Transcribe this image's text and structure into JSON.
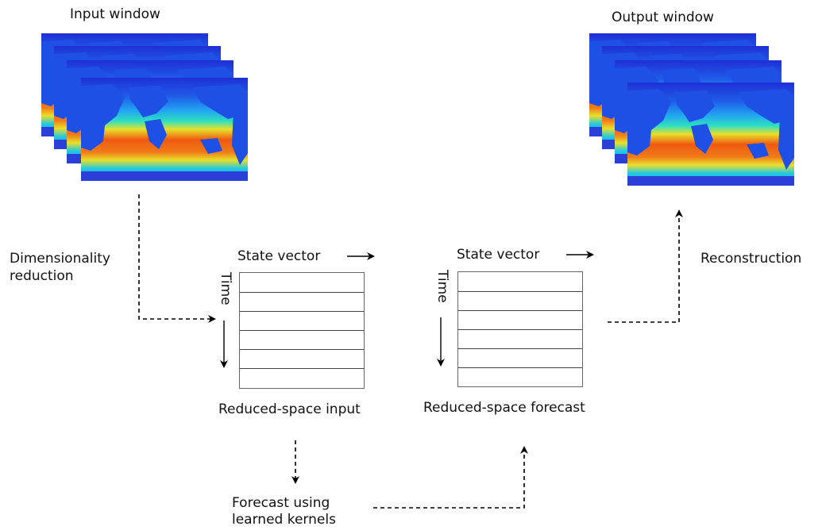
{
  "labels": {
    "input_window": "Input window",
    "output_window": "Output window",
    "dimensionality_line1": "Dimensionality",
    "dimensionality_line2": "reduction",
    "reconstruction": "Reconstruction",
    "state_vector_left": "State vector",
    "state_vector_right": "State vector",
    "time_left": "Time",
    "time_right": "Time",
    "reduced_input": "Reduced-space input",
    "reduced_forecast": "Reduced-space forecast",
    "forecast_line1": "Forecast using",
    "forecast_line2": "learned kernels"
  },
  "colors": {
    "ocean_cold": "#1f2fd6",
    "ocean_cool": "#22a6f0",
    "ocean_mid": "#2ee0c0",
    "ocean_warm": "#e8e02a",
    "ocean_hot": "#f05a10",
    "land": "#1e50e6"
  },
  "input_window": {
    "frames": 4
  },
  "output_window": {
    "frames": 4
  },
  "reduced_input": {
    "rows": 6
  },
  "reduced_forecast": {
    "rows": 6
  }
}
